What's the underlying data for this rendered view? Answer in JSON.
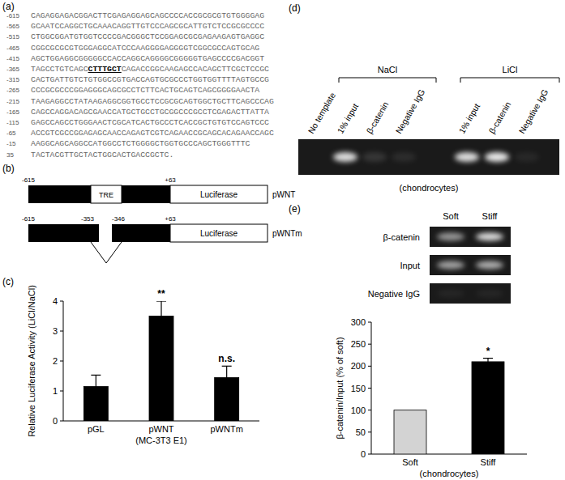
{
  "panels": {
    "a": {
      "letter": "(a)",
      "lines": [
        {
          "pos": -615,
          "parts": [
            "CAGAGGAGACGGACTTCGAGAGGAGCAGCCCCACCGCGCGTGTGGGGAG"
          ]
        },
        {
          "pos": -565,
          "parts": [
            "GCAATCCAGGCTGCAAACAGGTTGTCCCAGCGCATTGTCTCCGCGCCCC"
          ]
        },
        {
          "pos": -515,
          "parts": [
            "CTGGCGGATGTGGTCCCCGACGGGCTCCGGAGCGCGAGAAGAGTGAGGC"
          ]
        },
        {
          "pos": -465,
          "parts": [
            "CGGCGCGCGTGGGAGGCATCCCAAGGGGAGGGGTCGGCGCCAGTGCAG"
          ]
        },
        {
          "pos": -415,
          "parts": [
            "AGCTGGAGGCGGGGGCCACCAGGCAGGGGCGGGGGTGAGCCCCGACGGT"
          ]
        },
        {
          "pos": -365,
          "parts": [
            "TAGCCTGTCAGC",
            "CTTTGCT",
            "CAGACCGGCAAGAGCCACAGCTTCGCTCCGC"
          ]
        },
        {
          "pos": -315,
          "parts": [
            "CACTGATTGTCTGTGGCCGTGACCAGTGCGCCCTGGTGGTTTTAGTGCCG"
          ]
        },
        {
          "pos": -265,
          "parts": [
            "CCCGCGCCCGGAGGGCAGCGCCTCTTCACTGCAGTCAGCGGGGAACTA"
          ]
        },
        {
          "pos": -215,
          "parts": [
            "TAAGAGGCCTATAAGAGGCGGTGCCTCCGCGCAGTGGCTGCTTCAGCCCAG"
          ]
        },
        {
          "pos": -165,
          "parts": [
            "CAGCCAGGACAGCGAACCATGCTGCCTGCGGCCCGCCTCGAGACTTATTA"
          ]
        },
        {
          "pos": -115,
          "parts": [
            "GAGCCAGCCTGGGAACTCGCATCACTGCCCTCACCGCTGTGTCCAGTCCC"
          ]
        },
        {
          "pos": -65,
          "parts": [
            "ACCGTCGCCGGAGAGCAACCAGAGTCGTCAGAACCGCAGCACAGAACCAGC"
          ]
        },
        {
          "pos": -15,
          "parts": [
            "AAGGCAGCAGGCCATGGCCTCTGGGGCTGGTGCCCAGCTGGGTTTC"
          ]
        },
        {
          "pos": 35,
          "parts": [
            "TACTACGTTGCTACTGGCACTGACCGCTC."
          ]
        }
      ]
    },
    "b": {
      "letter": "(b)",
      "constructs": [
        {
          "name": "pWNT",
          "labels": [
            "-615",
            "+63"
          ],
          "element": "TRE",
          "reporter": "Luciferase"
        },
        {
          "name": "pWNTm",
          "labels": [
            "-615",
            "-353",
            "-346",
            "+63"
          ],
          "reporter": "Luciferase"
        }
      ]
    },
    "c": {
      "letter": "(c)"
    },
    "d": {
      "letter": "(d)",
      "footer": "(chondrocytes)",
      "lanes": [
        {
          "label": "No template",
          "band": 0.0
        },
        {
          "label": "1% input",
          "band": 0.85
        },
        {
          "label": "β-catenin",
          "band": 0.12
        },
        {
          "label": "Negative IgG",
          "band": 0.08
        },
        {
          "label": "1% input",
          "band": 0.85
        },
        {
          "label": "β-catenin",
          "band": 0.9
        },
        {
          "label": "Negative IgG",
          "band": 0.06
        }
      ],
      "groups": [
        {
          "label": "NaCl",
          "first": 1,
          "last": 3
        },
        {
          "label": "LiCl",
          "first": 4,
          "last": 6
        }
      ]
    },
    "e": {
      "letter": "(e)",
      "columns": [
        "Soft",
        "Stiff"
      ],
      "rows": [
        {
          "label": "β-catenin",
          "bands": [
            0.55,
            0.85
          ]
        },
        {
          "label": "Input",
          "bands": [
            0.6,
            0.65
          ]
        },
        {
          "label": "Negative IgG",
          "bands": [
            0.05,
            0.05
          ]
        }
      ]
    }
  },
  "chart_data": [
    {
      "type": "bar",
      "ylabel": "Relative Luciferase Activity (LiCl/NaCl)",
      "xlabel": "(MC-3T3 E1)",
      "categories": [
        "pGL",
        "pWNT",
        "pWNTm"
      ],
      "values": [
        1.15,
        3.5,
        1.45
      ],
      "errors": [
        0.38,
        0.5,
        0.38
      ],
      "annotations": [
        {
          "index": 1,
          "text": "**"
        },
        {
          "index": 2,
          "text": "n.s."
        }
      ],
      "color": "#000000",
      "ylim": [
        0,
        4
      ],
      "yticks": [
        0,
        1,
        2,
        3,
        4
      ]
    },
    {
      "type": "bar",
      "ylabel": "β-catenin/Input (% of soft)",
      "xlabel": "(chondrocytes)",
      "categories": [
        "Soft",
        "Stiff"
      ],
      "values": [
        100,
        210
      ],
      "errors": [
        0,
        8
      ],
      "annotations": [
        {
          "index": 1,
          "text": "*"
        }
      ],
      "colors": [
        "#d3d3d3",
        "#000000"
      ],
      "ylim": [
        0,
        300
      ],
      "yticks": [
        0,
        50,
        100,
        150,
        200,
        250,
        300
      ]
    }
  ]
}
